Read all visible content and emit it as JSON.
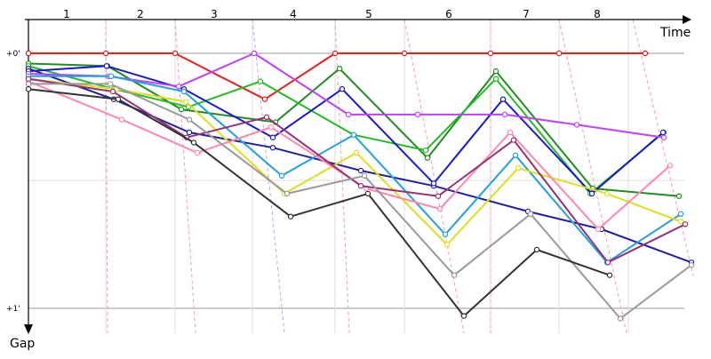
{
  "chart_data": {
    "type": "line",
    "xlabel": "Time",
    "ylabel": "Gap",
    "lap_labels": [
      "1",
      "2",
      "3",
      "4",
      "5",
      "6",
      "7",
      "8"
    ],
    "y_tick_labels": [
      "+0'",
      "+1'"
    ],
    "ylim": [
      0,
      1
    ],
    "grid": true,
    "series": [
      {
        "color": "#e82020",
        "points": [
          [
            32,
            0
          ],
          [
            119,
            0
          ],
          [
            197,
            0
          ],
          [
            298,
            0.18
          ],
          [
            377,
            0
          ],
          [
            455,
            0
          ],
          [
            552,
            0
          ],
          [
            629,
            0
          ],
          [
            726,
            0
          ]
        ]
      },
      {
        "color": "#228b22",
        "points": [
          [
            32,
            0.04
          ],
          [
            121,
            0.05
          ],
          [
            204,
            0.22
          ],
          [
            310,
            0.27
          ],
          [
            382,
            0.06
          ],
          [
            481,
            0.41
          ],
          [
            558,
            0.07
          ],
          [
            667,
            0.53
          ],
          [
            764,
            0.56
          ]
        ]
      },
      {
        "color": "#22bb22",
        "points": [
          [
            32,
            0.05
          ],
          [
            128,
            0.14
          ],
          [
            212,
            0.21
          ],
          [
            293,
            0.11
          ],
          [
            398,
            0.32
          ],
          [
            479,
            0.38
          ],
          [
            558,
            0.1
          ],
          [
            664,
            0.55
          ],
          [
            747,
            0.31
          ]
        ]
      },
      {
        "color": "#2020a0",
        "points": [
          [
            32,
            0.06
          ],
          [
            128,
            0.18
          ],
          [
            213,
            0.31
          ],
          [
            307,
            0.37
          ],
          [
            406,
            0.46
          ],
          [
            488,
            0.52
          ],
          [
            594,
            0.62
          ],
          [
            677,
            0.69
          ],
          [
            778,
            0.82
          ]
        ]
      },
      {
        "color": "#1a1acc",
        "points": [
          [
            32,
            0.07
          ],
          [
            120,
            0.05
          ],
          [
            207,
            0.14
          ],
          [
            307,
            0.33
          ],
          [
            385,
            0.14
          ],
          [
            488,
            0.51
          ],
          [
            566,
            0.18
          ],
          [
            666,
            0.55
          ],
          [
            746,
            0.31
          ]
        ]
      },
      {
        "color": "#c040ff",
        "points": [
          [
            32,
            0.08
          ],
          [
            122,
            0.09
          ],
          [
            201,
            0.13
          ],
          [
            286,
            0
          ],
          [
            392,
            0.24
          ],
          [
            470,
            0.24
          ],
          [
            568,
            0.24
          ],
          [
            649,
            0.28
          ],
          [
            747,
            0.33
          ]
        ]
      },
      {
        "color": "#22a0e0",
        "points": [
          [
            32,
            0.09
          ],
          [
            125,
            0.09
          ],
          [
            207,
            0.15
          ],
          [
            317,
            0.48
          ],
          [
            398,
            0.32
          ],
          [
            501,
            0.71
          ],
          [
            580,
            0.4
          ],
          [
            683,
            0.82
          ],
          [
            766,
            0.63
          ]
        ]
      },
      {
        "color": "#dddd22",
        "points": [
          [
            32,
            0.1
          ],
          [
            131,
            0.14
          ],
          [
            209,
            0.19
          ],
          [
            320,
            0.55
          ],
          [
            401,
            0.39
          ],
          [
            503,
            0.75
          ],
          [
            583,
            0.45
          ],
          [
            683,
            0.55
          ],
          [
            766,
            0.66
          ]
        ]
      },
      {
        "color": "#ff88aa",
        "points": [
          [
            32,
            0.11
          ],
          [
            137,
            0.26
          ],
          [
            222,
            0.39
          ],
          [
            305,
            0.29
          ],
          [
            412,
            0.53
          ],
          [
            495,
            0.61
          ],
          [
            574,
            0.31
          ],
          [
            673,
            0.69
          ],
          [
            754,
            0.44
          ]
        ]
      },
      {
        "color": "#983078",
        "points": [
          [
            32,
            0.1
          ],
          [
            127,
            0.15
          ],
          [
            210,
            0.33
          ],
          [
            300,
            0.25
          ],
          [
            406,
            0.52
          ],
          [
            493,
            0.56
          ],
          [
            578,
            0.34
          ],
          [
            684,
            0.82
          ],
          [
            771,
            0.67
          ]
        ]
      },
      {
        "color": "#999999",
        "points": [
          [
            32,
            0.12
          ],
          [
            124,
            0.12
          ],
          [
            213,
            0.26
          ],
          [
            323,
            0.55
          ],
          [
            410,
            0.48
          ],
          [
            511,
            0.87
          ],
          [
            597,
            0.63
          ],
          [
            698,
            1.04
          ],
          [
            778,
            0.83
          ]
        ]
      },
      {
        "color": "#333333",
        "points": [
          [
            32,
            0.14
          ],
          [
            133,
            0.18
          ],
          [
            218,
            0.35
          ],
          [
            327,
            0.64
          ],
          [
            414,
            0.55
          ],
          [
            522,
            1.03
          ],
          [
            604,
            0.77
          ],
          [
            686,
            0.87
          ]
        ]
      }
    ]
  }
}
